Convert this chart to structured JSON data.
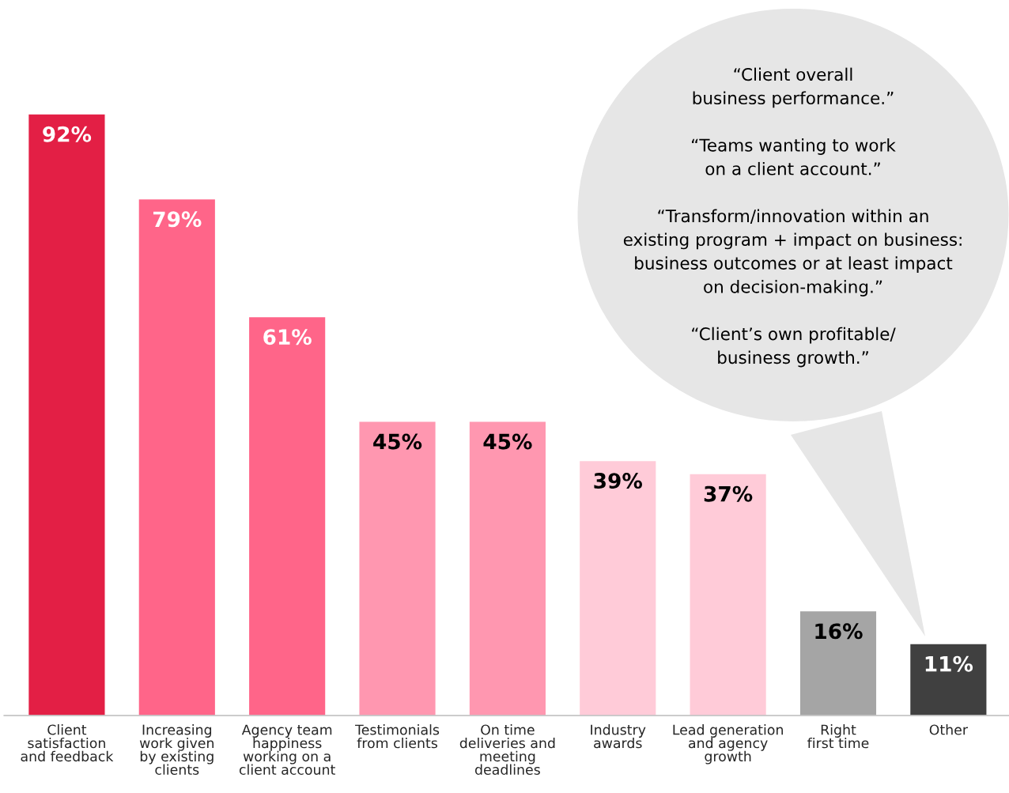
{
  "chart_data": {
    "type": "bar",
    "categories": [
      "Client\nsatisfaction\nand feedback",
      "Increasing\nwork given\nby existing\nclients",
      "Agency team\nhappiness\nworking on a\nclient account",
      "Testimonials\nfrom clients",
      "On time\ndeliveries and\nmeeting\ndeadlines",
      "Industry\nawards",
      "Lead generation\nand agency\ngrowth",
      "Right\nfirst time",
      "Other"
    ],
    "values": [
      92,
      79,
      61,
      45,
      45,
      39,
      37,
      16,
      11
    ],
    "colors": [
      "#e31f45",
      "#ff6589",
      "#ff6589",
      "#ff97b0",
      "#ff97b0",
      "#ffcbd8",
      "#ffcbd8",
      "#a5a5a5",
      "#404040"
    ],
    "value_labels": [
      "92%",
      "79%",
      "61%",
      "45%",
      "45%",
      "39%",
      "37%",
      "16%",
      "11%"
    ],
    "annotations": [
      "“Client overall\nbusiness performance.”",
      "“Teams wanting to work\non a client account.”",
      "“Transform/innovation within an\nexisting program + impact on business:\nbusiness outcomes or at least impact\non decision-making.”",
      "“Client’s own profitable/\nbusiness growth.”"
    ],
    "grid": false,
    "legend": false
  }
}
